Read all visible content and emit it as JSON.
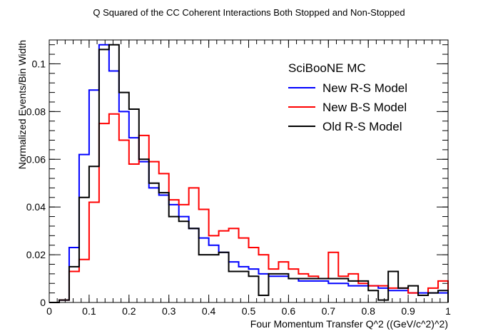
{
  "chart_data": {
    "type": "line",
    "style": "step histogram",
    "title": "Q Squared of the CC Coherent Interactions Both Stopped and Non-Stopped",
    "xlabel": "Four Momentum Transfer Q^2 ((GeV/c^2)^2)",
    "ylabel": "Normalized Events/Bin Width",
    "xlim": [
      0,
      1
    ],
    "ylim": [
      0,
      0.11
    ],
    "x_ticks": [
      0,
      0.1,
      0.2,
      0.3,
      0.4,
      0.5,
      0.6,
      0.7,
      0.8,
      0.9,
      1
    ],
    "x_tick_labels": [
      "0",
      "0.1",
      "0.2",
      "0.3",
      "0.4",
      "0.5",
      "0.6",
      "0.7",
      "0.8",
      "0.9",
      "1"
    ],
    "y_ticks": [
      0,
      0.02,
      0.04,
      0.06,
      0.08,
      0.1
    ],
    "y_tick_labels": [
      "0",
      "0.02",
      "0.04",
      "0.06",
      "0.08",
      "0.1"
    ],
    "bin_edges": [
      0,
      0.025,
      0.05,
      0.075,
      0.1,
      0.125,
      0.15,
      0.175,
      0.2,
      0.225,
      0.25,
      0.275,
      0.3,
      0.325,
      0.35,
      0.375,
      0.4,
      0.425,
      0.45,
      0.475,
      0.5,
      0.525,
      0.55,
      0.575,
      0.6,
      0.625,
      0.65,
      0.675,
      0.7,
      0.725,
      0.75,
      0.775,
      0.8,
      0.825,
      0.85,
      0.875,
      0.9,
      0.925,
      0.95,
      0.975,
      1
    ],
    "legend_header": "SciBooNE MC",
    "legend_position": "top-right",
    "series": [
      {
        "name": "New R-S Model",
        "color": "#0000ff",
        "values": [
          0,
          0.001,
          0.023,
          0.062,
          0.089,
          0.108,
          0.097,
          0.08,
          0.069,
          0.059,
          0.048,
          0.045,
          0.041,
          0.036,
          0.031,
          0.027,
          0.024,
          0.021,
          0.017,
          0.015,
          0.014,
          0.012,
          0.011,
          0.011,
          0.01,
          0.009,
          0.009,
          0.009,
          0.008,
          0.008,
          0.007,
          0.007,
          0.007,
          0.006,
          0.005,
          0.005,
          0.004,
          0.004,
          0.004,
          0.004
        ]
      },
      {
        "name": "New B-S Model",
        "color": "#ff0000",
        "values": [
          0,
          0.001,
          0.013,
          0.018,
          0.042,
          0.075,
          0.079,
          0.068,
          0.058,
          0.07,
          0.059,
          0.054,
          0.043,
          0.041,
          0.048,
          0.039,
          0.028,
          0.03,
          0.031,
          0.027,
          0.023,
          0.02,
          0.014,
          0.017,
          0.014,
          0.012,
          0.011,
          0.01,
          0.021,
          0.011,
          0.012,
          0.008,
          0.007,
          0.007,
          0.006,
          0.006,
          0.004,
          0.003,
          0.006,
          0.009
        ]
      },
      {
        "name": "Old R-S Model",
        "color": "#000000",
        "values": [
          0,
          0.001,
          0.015,
          0.044,
          0.057,
          0.106,
          0.108,
          0.088,
          0.081,
          0.06,
          0.05,
          0.046,
          0.036,
          0.034,
          0.031,
          0.02,
          0.02,
          0.021,
          0.013,
          0.013,
          0.011,
          0.003,
          0.012,
          0.012,
          0.01,
          0.01,
          0.01,
          0.01,
          0.01,
          0.01,
          0.009,
          0.009,
          0.005,
          0.001,
          0.013,
          0.006,
          0.007,
          0.003,
          0.004,
          0.005
        ]
      }
    ]
  }
}
